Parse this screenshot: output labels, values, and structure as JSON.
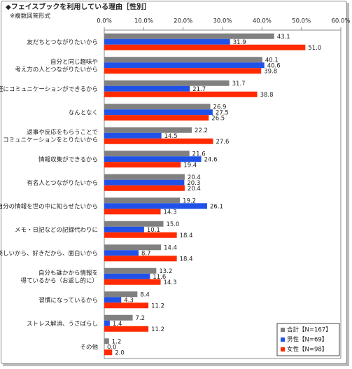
{
  "chart_data": {
    "type": "bar",
    "orientation": "horizontal",
    "title": "◆フェイスブックを利用している理由［性別］",
    "subtitle": "※複数回答形式",
    "categories": [
      "友だちとつながりたいから",
      "自分と同じ趣味や\n考え方の人とつながりたいから",
      "気軽にコミュニケーションができるから",
      "なんとなく",
      "返事や反応をもらうことで\nコミュニケーションをとりたいから",
      "情報収集ができるから",
      "有名人とつながりたいから",
      "自分の情報を世の中に知らせたいから",
      "メモ・日記などの記録代わりに",
      "楽しいから、好きだから、面白いから",
      "自分も誰かから情報を\n得ているから（お返し的に）",
      "習慣になっているから",
      "ストレス解消、うさばらし",
      "その他"
    ],
    "series": [
      {
        "name": "合計【N=167】",
        "color": "#808080",
        "values": [
          43.1,
          40.1,
          31.7,
          26.9,
          22.2,
          21.6,
          20.4,
          19.2,
          15,
          14.4,
          13.2,
          8.4,
          7.2,
          1.2
        ],
        "value_labels": [
          "43.1",
          "40.1",
          "31.7",
          "26.9",
          "22.2",
          "21.6",
          "20.4",
          "19.2",
          "15.0",
          "14.4",
          "13.2",
          "8.4",
          "7.2",
          "1.2"
        ]
      },
      {
        "name": "男性【N=69】",
        "color": "#2152e8",
        "values": [
          31.9,
          40.6,
          21.7,
          27.5,
          14.5,
          24.6,
          20.3,
          26.1,
          10.1,
          8.7,
          11.6,
          4.3,
          1.4,
          0
        ],
        "value_labels": [
          "31.9",
          "40.6",
          "21.7",
          "27.5",
          "14.5",
          "24.6",
          "20.3",
          "26.1",
          "10.1",
          "8.7",
          "11.6",
          "4.3",
          "1.4",
          "0.0"
        ]
      },
      {
        "name": "女性【N=98】",
        "color": "#ff2a00",
        "values": [
          51,
          39.8,
          38.8,
          26.5,
          27.6,
          19.4,
          20.4,
          14.3,
          18.4,
          18.4,
          14.3,
          11.2,
          11.2,
          2
        ],
        "value_labels": [
          "51.0",
          "39.8",
          "38.8",
          "26.5",
          "27.6",
          "19.4",
          "20.4",
          "14.3",
          "18.4",
          "18.4",
          "14.3",
          "11.2",
          "11.2",
          "2.0"
        ]
      }
    ],
    "xlim": [
      0,
      60
    ],
    "xticks": [
      {
        "value": 0,
        "label": "0.0%"
      },
      {
        "value": 10,
        "label": "10.0%"
      },
      {
        "value": 20,
        "label": "20.0%"
      },
      {
        "value": 30,
        "label": "30.0%"
      },
      {
        "value": 40,
        "label": "40.0%"
      },
      {
        "value": 50,
        "label": "50.0%"
      },
      {
        "value": 60,
        "label": "60.0%"
      }
    ],
    "legend": "lower right"
  }
}
